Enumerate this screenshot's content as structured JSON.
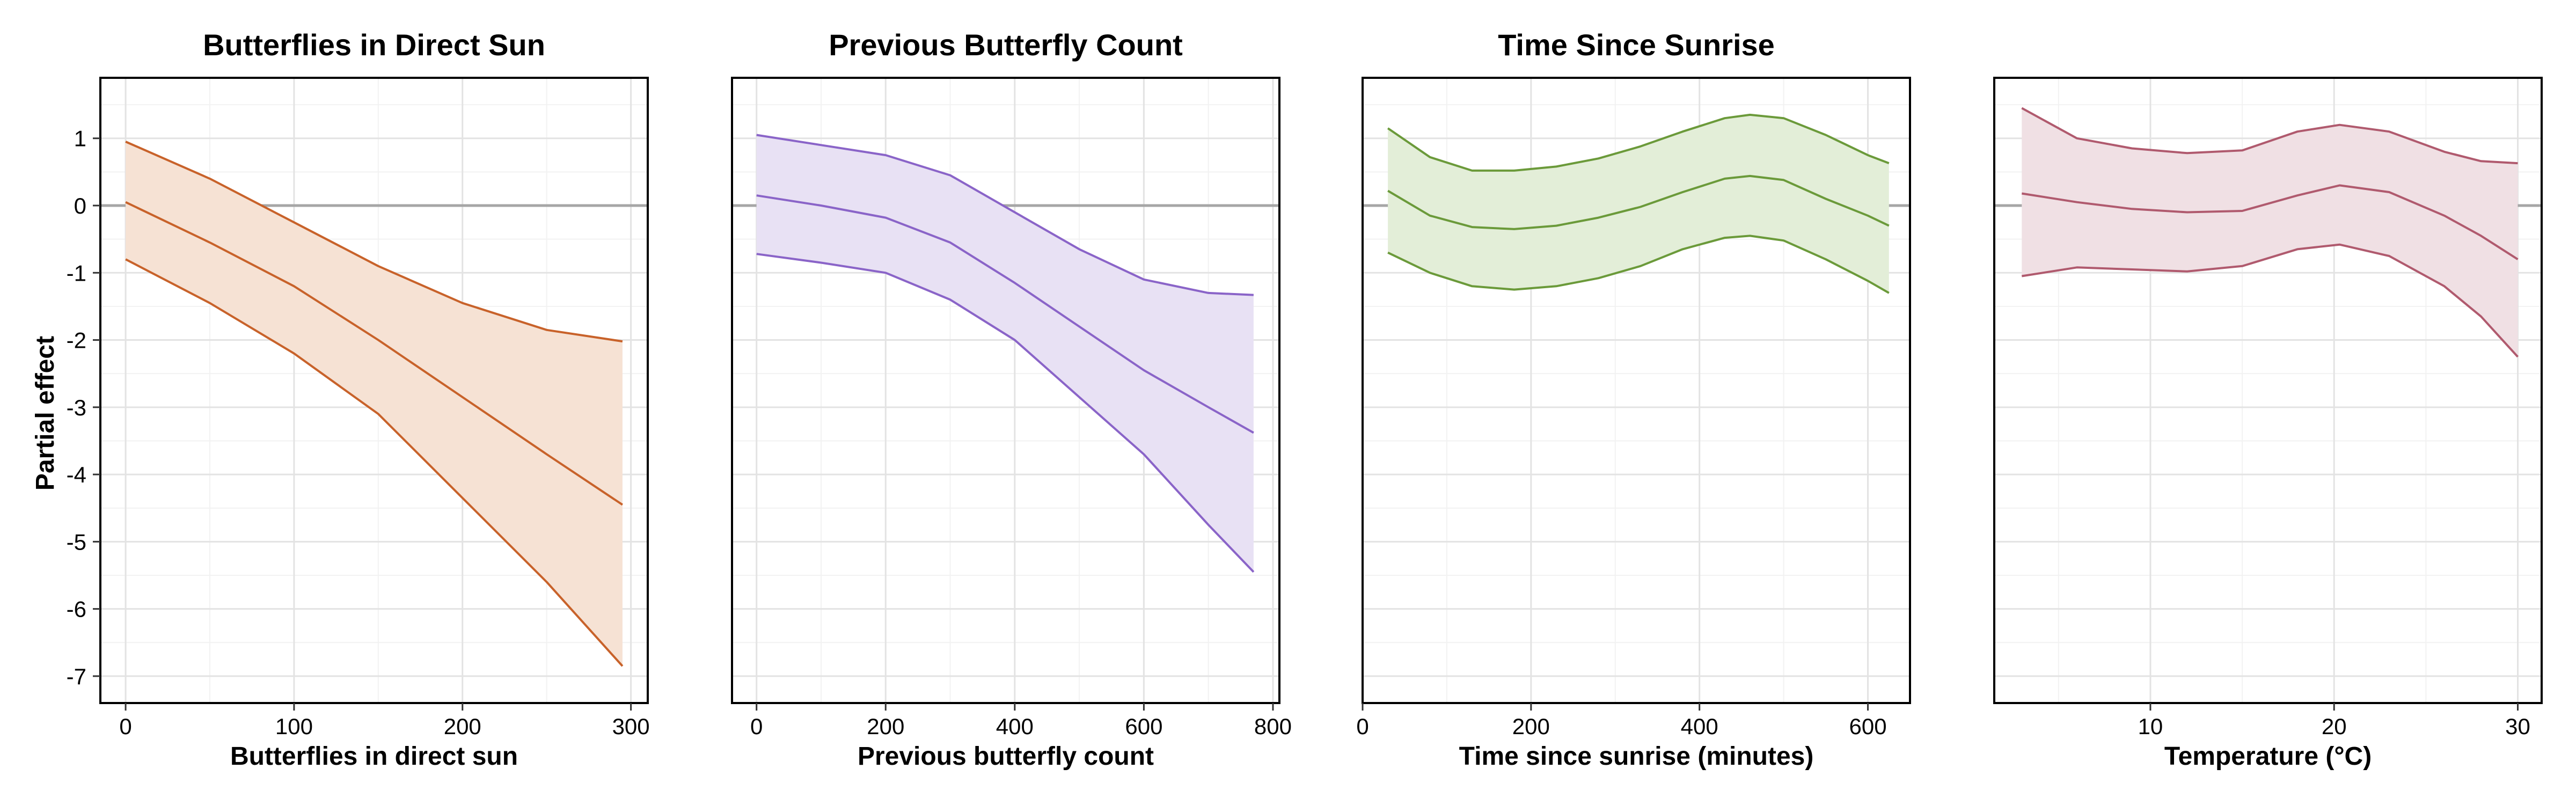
{
  "ylabel": "Partial effect",
  "colors": {
    "grid_major": "#e3e3e3",
    "grid_minor": "#f2f2f2",
    "zero_line": "#a6a6a6"
  },
  "chart_data": [
    {
      "type": "line",
      "title": "Butterflies in Direct Sun",
      "xlabel": "Butterflies in direct sun",
      "xlim": [
        -15,
        310
      ],
      "ylim": [
        -7.4,
        1.9
      ],
      "xticks": [
        0,
        100,
        200,
        300
      ],
      "yticks": [
        -7,
        -6,
        -5,
        -4,
        -3,
        -2,
        -1,
        0,
        1
      ],
      "color": "#c8622a",
      "fill": "#f6e2d4",
      "x": [
        0,
        50,
        100,
        150,
        200,
        250,
        295
      ],
      "fit": [
        0.05,
        -0.55,
        -1.2,
        -2.0,
        -2.85,
        -3.7,
        -4.45
      ],
      "upper": [
        0.95,
        0.4,
        -0.25,
        -0.9,
        -1.45,
        -1.85,
        -2.02
      ],
      "lower": [
        -0.8,
        -1.45,
        -2.2,
        -3.1,
        -4.35,
        -5.6,
        -6.85
      ]
    },
    {
      "type": "line",
      "title": "Previous Butterfly Count",
      "xlabel": "Previous butterfly count",
      "xlim": [
        -38,
        810
      ],
      "ylim": [
        -7.4,
        1.9
      ],
      "xticks": [
        0,
        200,
        400,
        600,
        800
      ],
      "yticks": [
        -7,
        -6,
        -5,
        -4,
        -3,
        -2,
        -1,
        0,
        1
      ],
      "color": "#8a64c8",
      "fill": "#e8e1f4",
      "x": [
        0,
        100,
        200,
        300,
        400,
        500,
        600,
        700,
        770
      ],
      "fit": [
        0.15,
        0.0,
        -0.18,
        -0.55,
        -1.15,
        -1.8,
        -2.45,
        -3.0,
        -3.38
      ],
      "upper": [
        1.05,
        0.9,
        0.75,
        0.45,
        -0.1,
        -0.65,
        -1.1,
        -1.3,
        -1.33
      ],
      "lower": [
        -0.72,
        -0.85,
        -1.0,
        -1.4,
        -2.0,
        -2.85,
        -3.7,
        -4.75,
        -5.45
      ]
    },
    {
      "type": "line",
      "title": "Time Since Sunrise",
      "xlabel": "Time since sunrise (minutes)",
      "xlim": [
        0,
        650
      ],
      "ylim": [
        -7.4,
        1.9
      ],
      "xticks": [
        0,
        200,
        400,
        600
      ],
      "yticks": [
        -7,
        -6,
        -5,
        -4,
        -3,
        -2,
        -1,
        0,
        1
      ],
      "color": "#6b9a3a",
      "fill": "#e3eed8",
      "x": [
        30,
        80,
        130,
        180,
        230,
        280,
        330,
        380,
        430,
        460,
        500,
        550,
        600,
        625
      ],
      "fit": [
        0.22,
        -0.15,
        -0.32,
        -0.35,
        -0.3,
        -0.18,
        -0.02,
        0.2,
        0.4,
        0.44,
        0.38,
        0.1,
        -0.15,
        -0.3
      ],
      "upper": [
        1.15,
        0.72,
        0.52,
        0.52,
        0.58,
        0.7,
        0.88,
        1.1,
        1.3,
        1.35,
        1.3,
        1.05,
        0.75,
        0.63
      ],
      "lower": [
        -0.7,
        -1.0,
        -1.2,
        -1.25,
        -1.2,
        -1.08,
        -0.9,
        -0.65,
        -0.48,
        -0.45,
        -0.52,
        -0.8,
        -1.12,
        -1.3
      ]
    },
    {
      "type": "line",
      "title": "",
      "xlabel": "Temperature (°C)",
      "xlim": [
        1.5,
        31.3
      ],
      "ylim": [
        -7.4,
        1.9
      ],
      "xticks": [
        10,
        20,
        30
      ],
      "yticks": [
        -7,
        -6,
        -5,
        -4,
        -3,
        -2,
        -1,
        0,
        1
      ],
      "color": "#b05a6e",
      "fill": "#f0e0e4",
      "x": [
        3,
        6,
        9,
        12,
        15,
        18,
        20.3,
        23,
        26,
        28,
        30
      ],
      "fit": [
        0.18,
        0.05,
        -0.05,
        -0.1,
        -0.08,
        0.15,
        0.3,
        0.2,
        -0.15,
        -0.45,
        -0.8
      ],
      "upper": [
        1.45,
        1.0,
        0.85,
        0.78,
        0.82,
        1.1,
        1.2,
        1.1,
        0.8,
        0.66,
        0.63
      ],
      "lower": [
        -1.05,
        -0.92,
        -0.95,
        -0.98,
        -0.9,
        -0.65,
        -0.58,
        -0.75,
        -1.2,
        -1.65,
        -2.25
      ]
    }
  ]
}
